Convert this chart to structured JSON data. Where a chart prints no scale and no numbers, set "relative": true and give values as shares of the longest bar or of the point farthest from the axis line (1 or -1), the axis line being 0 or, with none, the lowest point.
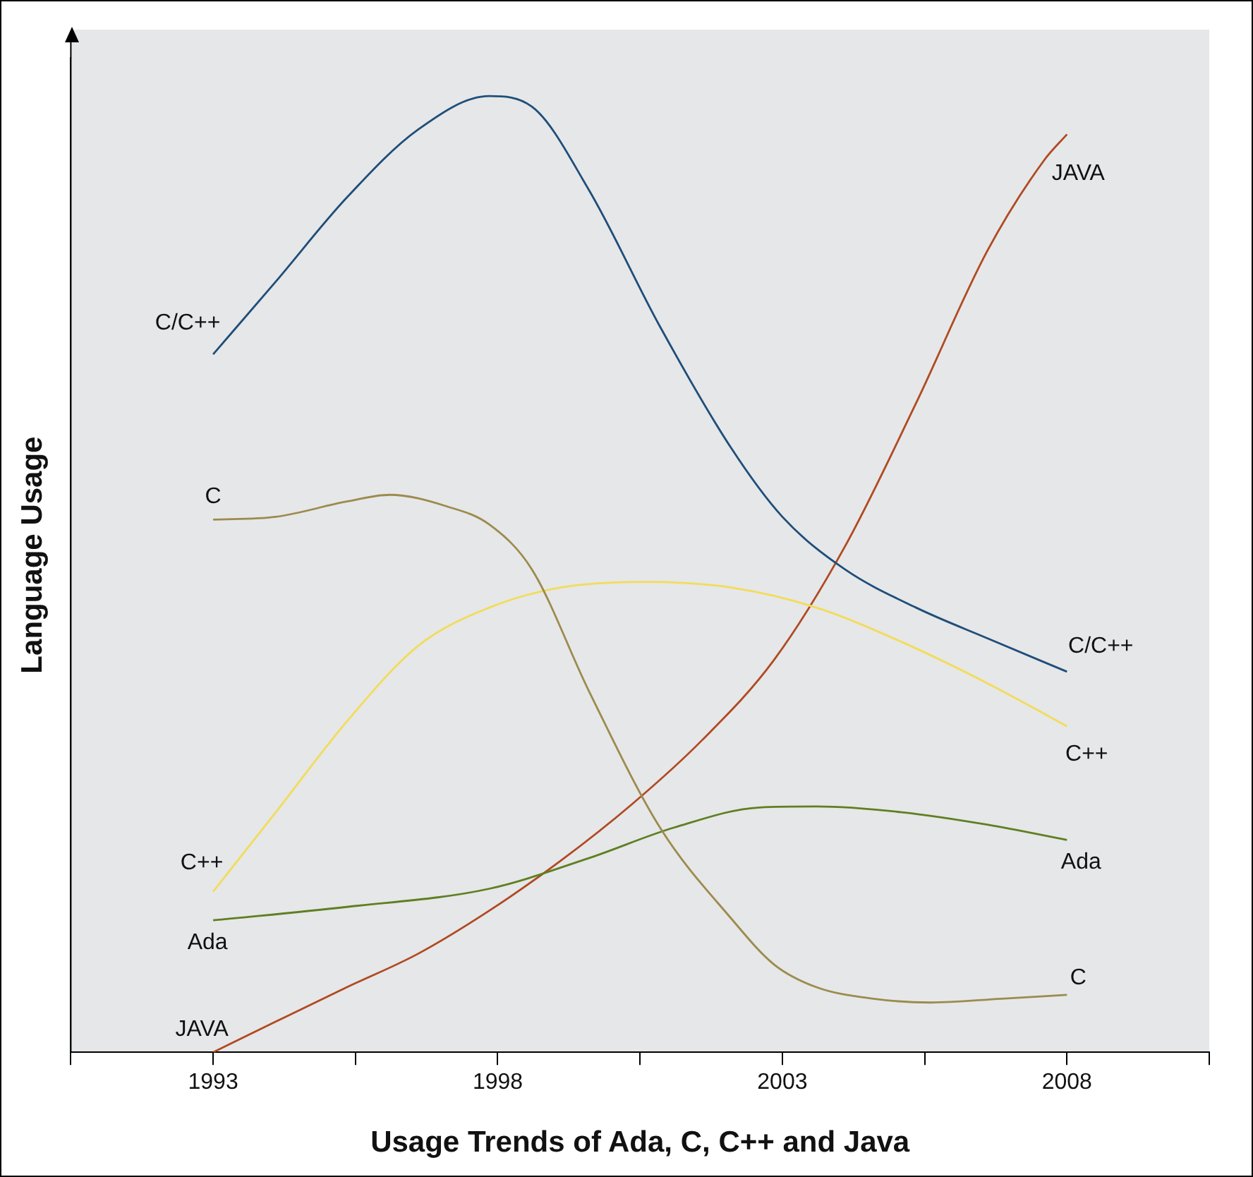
{
  "chart_data": {
    "type": "line",
    "relative": true,
    "xlabel": "Usage Trends of Ada, C, C++ and Java",
    "ylabel": "Language Usage",
    "xlim": [
      1990.5,
      2010.5
    ],
    "xticks": [
      {
        "value": 1990.5,
        "label": null
      },
      1993,
      {
        "value": 1995.5,
        "label": null
      },
      1998,
      {
        "value": 2000.5,
        "label": null
      },
      2003,
      {
        "value": 2005.5,
        "label": null
      },
      2008,
      {
        "value": 2010.5,
        "label": null
      }
    ],
    "grid": false,
    "legend": false,
    "marker": "none",
    "line_style": "solid",
    "series": [
      {
        "name": "C/C++",
        "color": "#1f4e7a",
        "x": [
          1993,
          1994.1,
          1995.35,
          1996.6,
          1997.85,
          1998.6,
          1999.6,
          2000.85,
          2002.1,
          2003,
          2004.1,
          2005.35,
          2006.6,
          2008
        ],
        "values": [
          0.73,
          0.806,
          0.894,
          0.965,
          1.0,
          0.989,
          0.902,
          0.759,
          0.632,
          0.56,
          0.505,
          0.465,
          0.433,
          0.398
        ]
      },
      {
        "name": "C",
        "color": "#9c8b4e",
        "x": [
          1993,
          1994.1,
          1995.35,
          1996.1,
          1997.1,
          1997.85,
          1998.6,
          1999.6,
          2000.85,
          2002.1,
          2002.85,
          2003.6,
          2004.6,
          2005.6,
          2006.85,
          2008
        ],
        "values": [
          0.557,
          0.56,
          0.576,
          0.583,
          0.571,
          0.552,
          0.505,
          0.378,
          0.235,
          0.14,
          0.092,
          0.068,
          0.056,
          0.052,
          0.056,
          0.06
        ]
      },
      {
        "name": "C++",
        "color": "#f2dc5a",
        "x": [
          1993,
          1994.1,
          1995.35,
          1996.6,
          1997.85,
          1999.1,
          2000.6,
          2002.1,
          2003.6,
          2005.1,
          2006.6,
          2008
        ],
        "values": [
          0.168,
          0.251,
          0.346,
          0.425,
          0.465,
          0.486,
          0.492,
          0.486,
          0.465,
          0.429,
          0.386,
          0.341
        ]
      },
      {
        "name": "Ada",
        "color": "#5f7f22",
        "x": [
          1993,
          1995.35,
          1997.85,
          1999.6,
          2001.1,
          2002.6,
          2003.6,
          2005.1,
          2006.6,
          2008
        ],
        "values": [
          0.138,
          0.152,
          0.171,
          0.203,
          0.235,
          0.256,
          0.257,
          0.251,
          0.238,
          0.222
        ]
      },
      {
        "name": "JAVA",
        "color": "#b04a22",
        "x": [
          1993,
          1994.1,
          1995.35,
          1996.6,
          1997.85,
          1999.1,
          2000.35,
          2001.6,
          2002.85,
          2004.1,
          2005.35,
          2006.6,
          2007.6,
          2008
        ],
        "values": [
          0,
          0.032,
          0.068,
          0.103,
          0.148,
          0.2,
          0.259,
          0.327,
          0.41,
          0.529,
          0.679,
          0.838,
          0.933,
          0.96
        ]
      }
    ]
  }
}
